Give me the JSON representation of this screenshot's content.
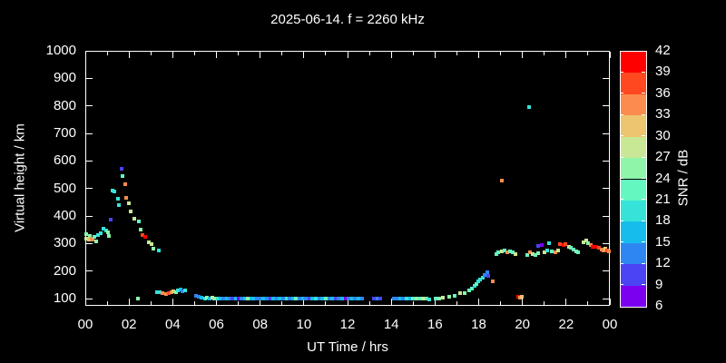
{
  "title": "2025-06-14. f = 2260 kHz",
  "colors": {
    "background": "#000000",
    "axis": "#ffffff",
    "text": "#ffffff"
  },
  "chart_data": {
    "type": "scatter",
    "title": "2025-06-14. f = 2260 kHz",
    "xlabel": "UT Time / hrs",
    "ylabel": "Virtual height / km",
    "colorbar_label": "SNR / dB",
    "xlim": [
      0,
      24
    ],
    "ylim": [
      74,
      1000
    ],
    "grid": false,
    "marker": "square",
    "x_major_ticks": [
      0,
      2,
      4,
      6,
      8,
      10,
      12,
      14,
      16,
      18,
      20,
      22,
      24
    ],
    "x_major_tick_labels": [
      "00",
      "02",
      "04",
      "06",
      "08",
      "10",
      "12",
      "14",
      "16",
      "18",
      "20",
      "22",
      "00"
    ],
    "x_minor_ticks": [
      1,
      3,
      5,
      7,
      9,
      11,
      13,
      15,
      17,
      19,
      21,
      23
    ],
    "y_ticks": [
      100,
      200,
      300,
      400,
      500,
      600,
      700,
      800,
      900,
      1000
    ],
    "y_tick_labels": [
      "100",
      "200",
      "300",
      "400",
      "500",
      "600",
      "700",
      "800",
      "900",
      "1000"
    ],
    "colorbar": {
      "min": 6,
      "max": 42,
      "step": 3,
      "tick_labels_top_to_bottom": [
        "42",
        "39",
        "36",
        "33",
        "30",
        "27",
        "24",
        "21",
        "18",
        "15",
        "12",
        "9",
        "6"
      ],
      "segment_colors_bottom_to_top": [
        "#7B00F0",
        "#4A44F5",
        "#2E86F2",
        "#16BDEC",
        "#35E3D9",
        "#64F8C0",
        "#8EF5A9",
        "#C9E896",
        "#EDC56F",
        "#FB8C4D",
        "#FF4720",
        "#FF0000"
      ]
    },
    "points_format": [
      "ut_hours",
      "virtual_height_km",
      "snr_db"
    ],
    "points": [
      [
        0.03,
        319,
        27
      ],
      [
        0.06,
        333,
        24
      ],
      [
        0.15,
        314,
        30
      ],
      [
        0.22,
        328,
        24
      ],
      [
        0.28,
        319,
        33
      ],
      [
        0.32,
        313,
        33
      ],
      [
        0.42,
        325,
        21
      ],
      [
        0.51,
        309,
        24
      ],
      [
        0.59,
        330,
        18
      ],
      [
        0.7,
        336,
        18
      ],
      [
        0.84,
        355,
        18
      ],
      [
        0.95,
        348,
        18
      ],
      [
        1.05,
        341,
        24
      ],
      [
        1.09,
        328,
        24
      ],
      [
        1.16,
        386,
        9
      ],
      [
        1.24,
        493,
        18
      ],
      [
        1.33,
        489,
        18
      ],
      [
        1.5,
        463,
        18
      ],
      [
        1.55,
        441,
        18
      ],
      [
        1.65,
        570,
        9
      ],
      [
        1.71,
        545,
        21
      ],
      [
        1.82,
        515,
        33
      ],
      [
        1.86,
        465,
        33
      ],
      [
        1.99,
        447,
        27
      ],
      [
        2.07,
        418,
        27
      ],
      [
        2.26,
        391,
        27
      ],
      [
        2.4,
        102,
        24
      ],
      [
        2.44,
        380,
        21
      ],
      [
        2.55,
        352,
        24
      ],
      [
        2.63,
        330,
        36
      ],
      [
        2.72,
        325,
        39
      ],
      [
        2.89,
        305,
        27
      ],
      [
        3.03,
        297,
        27
      ],
      [
        3.11,
        283,
        24
      ],
      [
        3.35,
        274,
        18
      ],
      [
        3.28,
        124,
        18
      ],
      [
        3.42,
        122,
        18
      ],
      [
        3.55,
        119,
        33
      ],
      [
        3.69,
        116,
        33
      ],
      [
        3.8,
        119,
        36
      ],
      [
        3.94,
        122,
        33
      ],
      [
        4.04,
        126,
        30
      ],
      [
        4.15,
        124,
        24
      ],
      [
        4.25,
        130,
        18
      ],
      [
        4.36,
        133,
        15
      ],
      [
        4.45,
        126,
        12
      ],
      [
        4.55,
        130,
        18
      ],
      [
        5.08,
        111,
        12
      ],
      [
        5.21,
        108,
        12
      ],
      [
        5.33,
        104,
        15
      ],
      [
        5.47,
        102,
        18
      ],
      [
        5.56,
        105,
        24
      ],
      [
        5.7,
        102,
        15
      ],
      [
        5.8,
        104,
        27
      ],
      [
        5.91,
        102,
        24
      ],
      [
        6.05,
        100,
        18
      ],
      [
        6.19,
        102,
        15
      ],
      [
        6.33,
        100,
        12
      ],
      [
        6.46,
        99,
        15
      ],
      [
        6.6,
        101,
        12
      ],
      [
        6.74,
        100,
        9
      ],
      [
        6.88,
        102,
        15
      ],
      [
        7.02,
        99,
        6
      ],
      [
        7.16,
        100,
        12
      ],
      [
        7.3,
        99,
        15
      ],
      [
        7.44,
        100,
        24
      ],
      [
        7.58,
        99,
        15
      ],
      [
        7.72,
        99,
        15
      ],
      [
        7.86,
        100,
        12
      ],
      [
        8.0,
        100,
        12
      ],
      [
        8.15,
        101,
        15
      ],
      [
        8.3,
        99,
        12
      ],
      [
        8.45,
        100,
        9
      ],
      [
        8.6,
        101,
        15
      ],
      [
        8.75,
        99,
        12
      ],
      [
        8.9,
        100,
        15
      ],
      [
        9.05,
        100,
        12
      ],
      [
        9.2,
        99,
        18
      ],
      [
        9.35,
        101,
        12
      ],
      [
        9.5,
        100,
        15
      ],
      [
        9.65,
        99,
        21
      ],
      [
        9.8,
        100,
        12
      ],
      [
        9.95,
        100,
        15
      ],
      [
        10.1,
        99,
        12
      ],
      [
        10.25,
        101,
        9
      ],
      [
        10.4,
        100,
        15
      ],
      [
        10.55,
        99,
        18
      ],
      [
        10.7,
        100,
        12
      ],
      [
        10.85,
        99,
        15
      ],
      [
        11.0,
        100,
        21
      ],
      [
        11.15,
        99,
        12
      ],
      [
        11.3,
        100,
        15
      ],
      [
        11.45,
        99,
        9
      ],
      [
        11.6,
        100,
        12
      ],
      [
        11.75,
        99,
        15
      ],
      [
        11.9,
        100,
        6
      ],
      [
        12.05,
        99,
        12
      ],
      [
        12.2,
        100,
        15
      ],
      [
        12.35,
        99,
        12
      ],
      [
        12.5,
        100,
        15
      ],
      [
        12.65,
        99,
        12
      ],
      [
        13.2,
        101,
        9
      ],
      [
        13.35,
        100,
        12
      ],
      [
        13.5,
        99,
        9
      ],
      [
        14.1,
        100,
        12
      ],
      [
        14.25,
        99,
        12
      ],
      [
        14.4,
        101,
        15
      ],
      [
        14.55,
        100,
        12
      ],
      [
        14.7,
        100,
        18
      ],
      [
        14.85,
        99,
        15
      ],
      [
        15.0,
        100,
        21
      ],
      [
        15.15,
        100,
        24
      ],
      [
        15.3,
        99,
        21
      ],
      [
        15.45,
        100,
        27
      ],
      [
        15.6,
        99,
        21
      ],
      [
        15.74,
        97,
        18
      ],
      [
        16.02,
        99,
        21
      ],
      [
        16.2,
        102,
        24
      ],
      [
        16.37,
        104,
        27
      ],
      [
        16.64,
        108,
        24
      ],
      [
        16.92,
        110,
        21
      ],
      [
        17.13,
        119,
        27
      ],
      [
        17.34,
        121,
        24
      ],
      [
        17.55,
        130,
        21
      ],
      [
        17.68,
        137,
        21
      ],
      [
        17.8,
        146,
        18
      ],
      [
        17.89,
        154,
        21
      ],
      [
        17.99,
        163,
        18
      ],
      [
        18.07,
        168,
        18
      ],
      [
        18.17,
        176,
        18
      ],
      [
        18.27,
        187,
        12
      ],
      [
        18.38,
        196,
        12
      ],
      [
        18.45,
        182,
        9
      ],
      [
        18.63,
        163,
        33
      ],
      [
        18.79,
        262,
        21
      ],
      [
        18.9,
        267,
        21
      ],
      [
        19.04,
        273,
        27
      ],
      [
        19.07,
        528,
        33
      ],
      [
        19.18,
        276,
        21
      ],
      [
        19.32,
        269,
        33
      ],
      [
        19.42,
        273,
        21
      ],
      [
        19.55,
        267,
        21
      ],
      [
        19.69,
        262,
        27
      ],
      [
        19.82,
        108,
        39
      ],
      [
        19.9,
        105,
        33
      ],
      [
        19.97,
        107,
        30
      ],
      [
        20.21,
        258,
        21
      ],
      [
        20.29,
        797,
        18
      ],
      [
        20.34,
        267,
        33
      ],
      [
        20.46,
        262,
        27
      ],
      [
        20.59,
        258,
        21
      ],
      [
        20.7,
        264,
        24
      ],
      [
        20.73,
        291,
        9
      ],
      [
        20.87,
        295,
        6
      ],
      [
        21.01,
        269,
        27
      ],
      [
        21.12,
        276,
        18
      ],
      [
        21.22,
        300,
        18
      ],
      [
        21.36,
        273,
        21
      ],
      [
        21.5,
        269,
        33
      ],
      [
        21.64,
        276,
        27
      ],
      [
        21.73,
        298,
        36
      ],
      [
        21.87,
        295,
        39
      ],
      [
        21.98,
        298,
        36
      ],
      [
        22.12,
        289,
        27
      ],
      [
        22.23,
        284,
        21
      ],
      [
        22.33,
        278,
        21
      ],
      [
        22.47,
        273,
        24
      ],
      [
        22.56,
        267,
        21
      ],
      [
        22.81,
        306,
        27
      ],
      [
        22.92,
        311,
        27
      ],
      [
        23.02,
        300,
        24
      ],
      [
        23.12,
        295,
        33
      ],
      [
        23.23,
        289,
        39
      ],
      [
        23.37,
        287,
        39
      ],
      [
        23.51,
        284,
        36
      ],
      [
        23.62,
        278,
        33
      ],
      [
        23.71,
        276,
        33
      ],
      [
        23.81,
        281,
        30
      ],
      [
        23.89,
        276,
        36
      ],
      [
        23.97,
        273,
        33
      ]
    ]
  }
}
